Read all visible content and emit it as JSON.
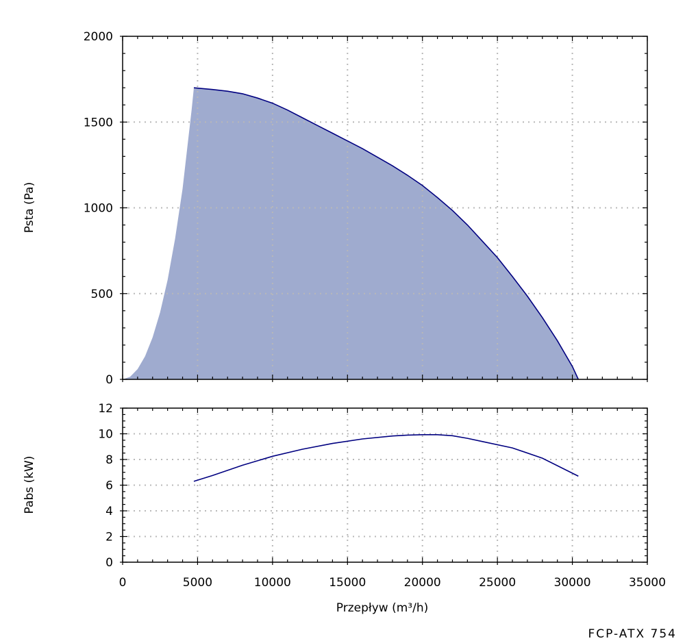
{
  "model_label": "FCP-ATX 754",
  "chart_data": [
    {
      "type": "area",
      "xlabel": "",
      "ylabel": "Psta (Pa)",
      "xlim": [
        0,
        35000
      ],
      "ylim": [
        0,
        2000
      ],
      "x_ticks": [
        0,
        5000,
        10000,
        15000,
        20000,
        25000,
        30000,
        35000
      ],
      "y_ticks": [
        0,
        500,
        1000,
        1500,
        2000
      ],
      "x_tick_labels_visible": false,
      "grid": true,
      "fill_color": "#9fabcf",
      "line_color": "#000080",
      "envelope": [
        [
          0,
          0
        ],
        [
          500,
          15
        ],
        [
          1000,
          60
        ],
        [
          1500,
          135
        ],
        [
          2000,
          245
        ],
        [
          2500,
          390
        ],
        [
          3000,
          580
        ],
        [
          3500,
          820
        ],
        [
          4000,
          1110
        ],
        [
          4300,
          1340
        ],
        [
          4600,
          1570
        ],
        [
          4750,
          1700
        ]
      ],
      "series": [
        {
          "x": [
            4750,
            6000,
            7000,
            8000,
            9000,
            10000,
            11000,
            12000,
            13000,
            14000,
            15000,
            16000,
            17000,
            18000,
            19000,
            20000,
            21000,
            22000,
            23000,
            24000,
            25000,
            26000,
            27000,
            28000,
            29000,
            30000,
            30400
          ],
          "y": [
            1700,
            1690,
            1680,
            1665,
            1640,
            1610,
            1570,
            1525,
            1480,
            1435,
            1390,
            1345,
            1295,
            1245,
            1190,
            1130,
            1060,
            985,
            900,
            805,
            710,
            600,
            485,
            360,
            225,
            75,
            0
          ]
        }
      ]
    },
    {
      "type": "line",
      "xlabel": "Przepływ (m³/h)",
      "ylabel": "Pabs (kW)",
      "xlim": [
        0,
        35000
      ],
      "ylim": [
        0,
        12
      ],
      "x_ticks": [
        0,
        5000,
        10000,
        15000,
        20000,
        25000,
        30000,
        35000
      ],
      "y_ticks": [
        0,
        2,
        4,
        6,
        8,
        10,
        12
      ],
      "grid": true,
      "line_color": "#000080",
      "series": [
        {
          "x": [
            4750,
            6000,
            8000,
            10000,
            12000,
            14000,
            16000,
            18000,
            19000,
            20000,
            21000,
            22000,
            23000,
            24000,
            26000,
            28000,
            30400
          ],
          "y": [
            6.3,
            6.75,
            7.55,
            8.25,
            8.8,
            9.25,
            9.6,
            9.83,
            9.9,
            9.93,
            9.93,
            9.85,
            9.65,
            9.4,
            8.9,
            8.1,
            6.7
          ]
        }
      ]
    }
  ]
}
